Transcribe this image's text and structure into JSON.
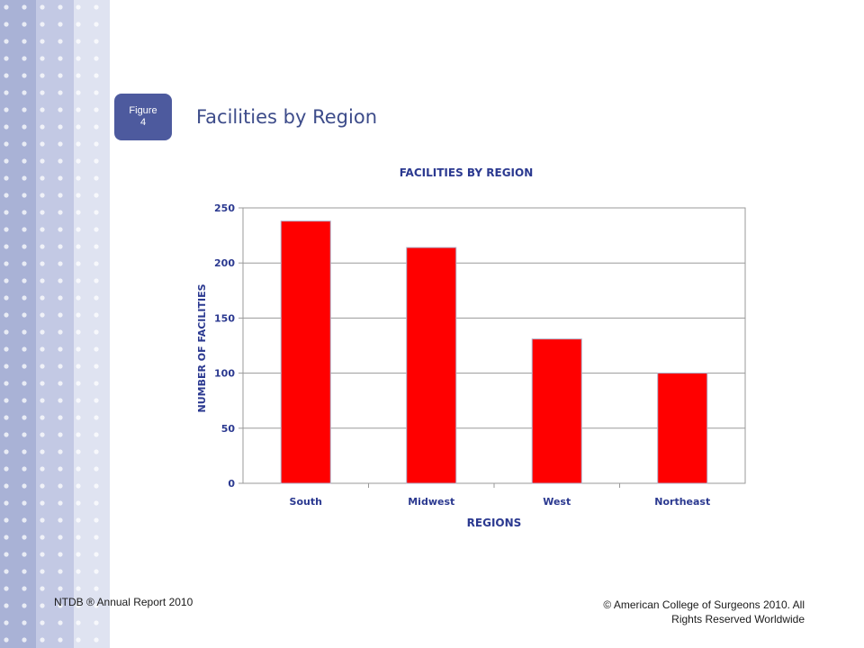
{
  "slide": {
    "figure_label": "Figure",
    "figure_number": "4",
    "title": "Facilities by Region",
    "footer_left": "NTDB ® Annual Report 2010",
    "footer_right_line1": "© American College of Surgeons 2010.  All",
    "footer_right_line2": "Rights Reserved Worldwide"
  },
  "colors": {
    "bar": "#ff0000",
    "text": "#2b3990",
    "accent": "#4d5a9e"
  },
  "chart_data": {
    "type": "bar",
    "title": "FACILITIES BY REGION",
    "xlabel": "REGIONS",
    "ylabel": "NUMBER OF FACILITIES",
    "categories": [
      "South",
      "Midwest",
      "West",
      "Northeast"
    ],
    "values": [
      238,
      214,
      131,
      100
    ],
    "ylim": [
      0,
      250
    ],
    "yticks": [
      0,
      50,
      100,
      150,
      200,
      250
    ],
    "grid": true,
    "legend": "none"
  }
}
